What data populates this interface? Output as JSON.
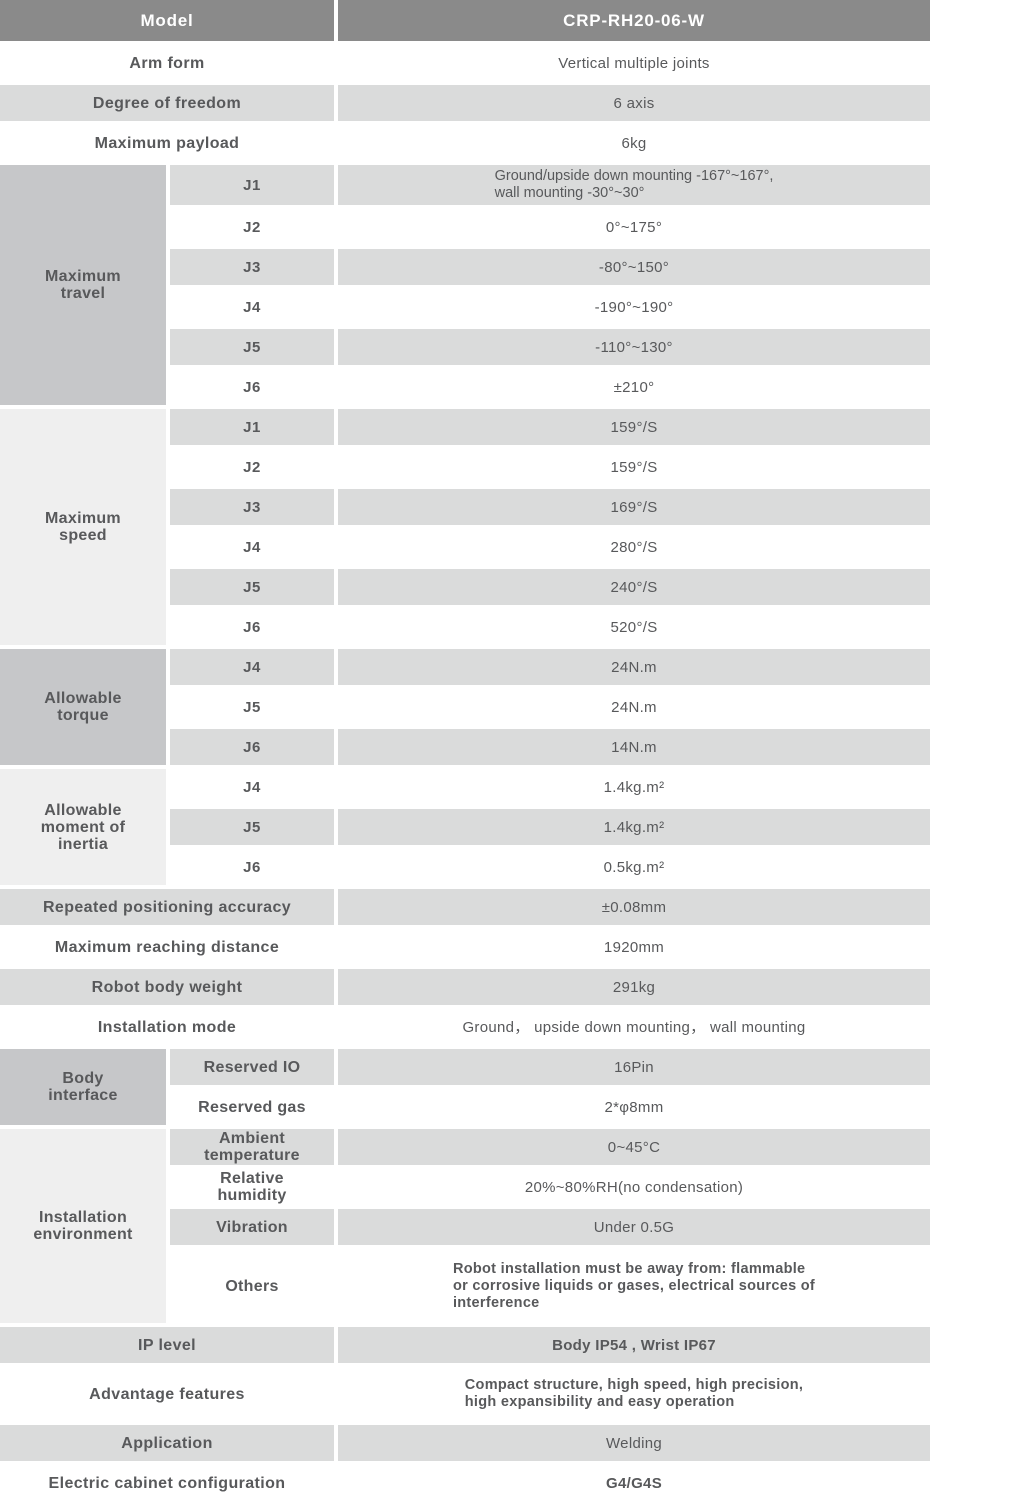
{
  "header": {
    "label": "Model",
    "value": "CRP-RH20-06-W"
  },
  "rows": {
    "arm_form": {
      "label": "Arm form",
      "value": "Vertical multiple joints"
    },
    "dof": {
      "label": "Degree of freedom",
      "value": "6 axis"
    },
    "payload": {
      "label": "Maximum payload",
      "value": "6kg"
    },
    "accuracy": {
      "label": "Repeated positioning accuracy",
      "value": "±0.08mm"
    },
    "reach": {
      "label": "Maximum reaching distance",
      "value": "1920mm"
    },
    "weight": {
      "label": "Robot body weight",
      "value": "291kg"
    },
    "install_mode": {
      "label": "Installation mode",
      "value": "Ground， upside down mounting， wall mounting"
    },
    "ip_level": {
      "label": "IP level",
      "value": "Body IP54 , Wrist IP67"
    },
    "advantage": {
      "label": "Advantage features",
      "lines": [
        "Compact structure, high speed, high precision,",
        "high expansibility and easy operation"
      ]
    },
    "application": {
      "label": "Application",
      "value": "Welding"
    },
    "cabinet": {
      "label": "Electric cabinet configuration",
      "value": "G4/G4S"
    }
  },
  "groups": {
    "max_travel": {
      "label": "Maximum travel",
      "rows": [
        {
          "joint": "J1",
          "lines": [
            "Ground/upside down mounting -167°~167°,",
            "wall mounting -30°~30°"
          ]
        },
        {
          "joint": "J2",
          "value": "0°~175°"
        },
        {
          "joint": "J3",
          "value": "-80°~150°"
        },
        {
          "joint": "J4",
          "value": "-190°~190°"
        },
        {
          "joint": "J5",
          "value": "-110°~130°"
        },
        {
          "joint": "J6",
          "value": "±210°"
        }
      ]
    },
    "max_speed": {
      "label": "Maximum speed",
      "rows": [
        {
          "joint": "J1",
          "value": "159°/S"
        },
        {
          "joint": "J2",
          "value": "159°/S"
        },
        {
          "joint": "J3",
          "value": "169°/S"
        },
        {
          "joint": "J4",
          "value": "280°/S"
        },
        {
          "joint": "J5",
          "value": "240°/S"
        },
        {
          "joint": "J6",
          "value": "520°/S"
        }
      ]
    },
    "torque": {
      "label": "Allowable torque",
      "rows": [
        {
          "joint": "J4",
          "value": "24N.m"
        },
        {
          "joint": "J5",
          "value": "24N.m"
        },
        {
          "joint": "J6",
          "value": "14N.m"
        }
      ]
    },
    "inertia": {
      "label": "Allowable moment of inertia",
      "rows": [
        {
          "joint": "J4",
          "value": "1.4kg.m²"
        },
        {
          "joint": "J5",
          "value": "1.4kg.m²"
        },
        {
          "joint": "J6",
          "value": "0.5kg.m²"
        }
      ]
    },
    "body_interface": {
      "label": "Body interface",
      "rows": [
        {
          "name": "Reserved IO",
          "value": "16Pin"
        },
        {
          "name": "Reserved gas",
          "value": "2*φ8mm"
        }
      ]
    },
    "environment": {
      "label": "Installation environment",
      "rows": [
        {
          "name": "Ambient temperature",
          "value": "0~45°C"
        },
        {
          "name": "Relative humidity",
          "value": "20%~80%RH(no condensation)"
        },
        {
          "name": "Vibration",
          "value": "Under 0.5G"
        },
        {
          "name": "Others",
          "lines": [
            "Robot installation must be away from: flammable",
            "or corrosive liquids or gases, electrical sources of",
            "interference"
          ]
        }
      ]
    }
  },
  "colors": {
    "header_bg": "#8a8a8a",
    "stripe": "#dadbdb",
    "group_dark": "#c6c7c9",
    "group_light": "#efefef",
    "text": "#58595b"
  }
}
